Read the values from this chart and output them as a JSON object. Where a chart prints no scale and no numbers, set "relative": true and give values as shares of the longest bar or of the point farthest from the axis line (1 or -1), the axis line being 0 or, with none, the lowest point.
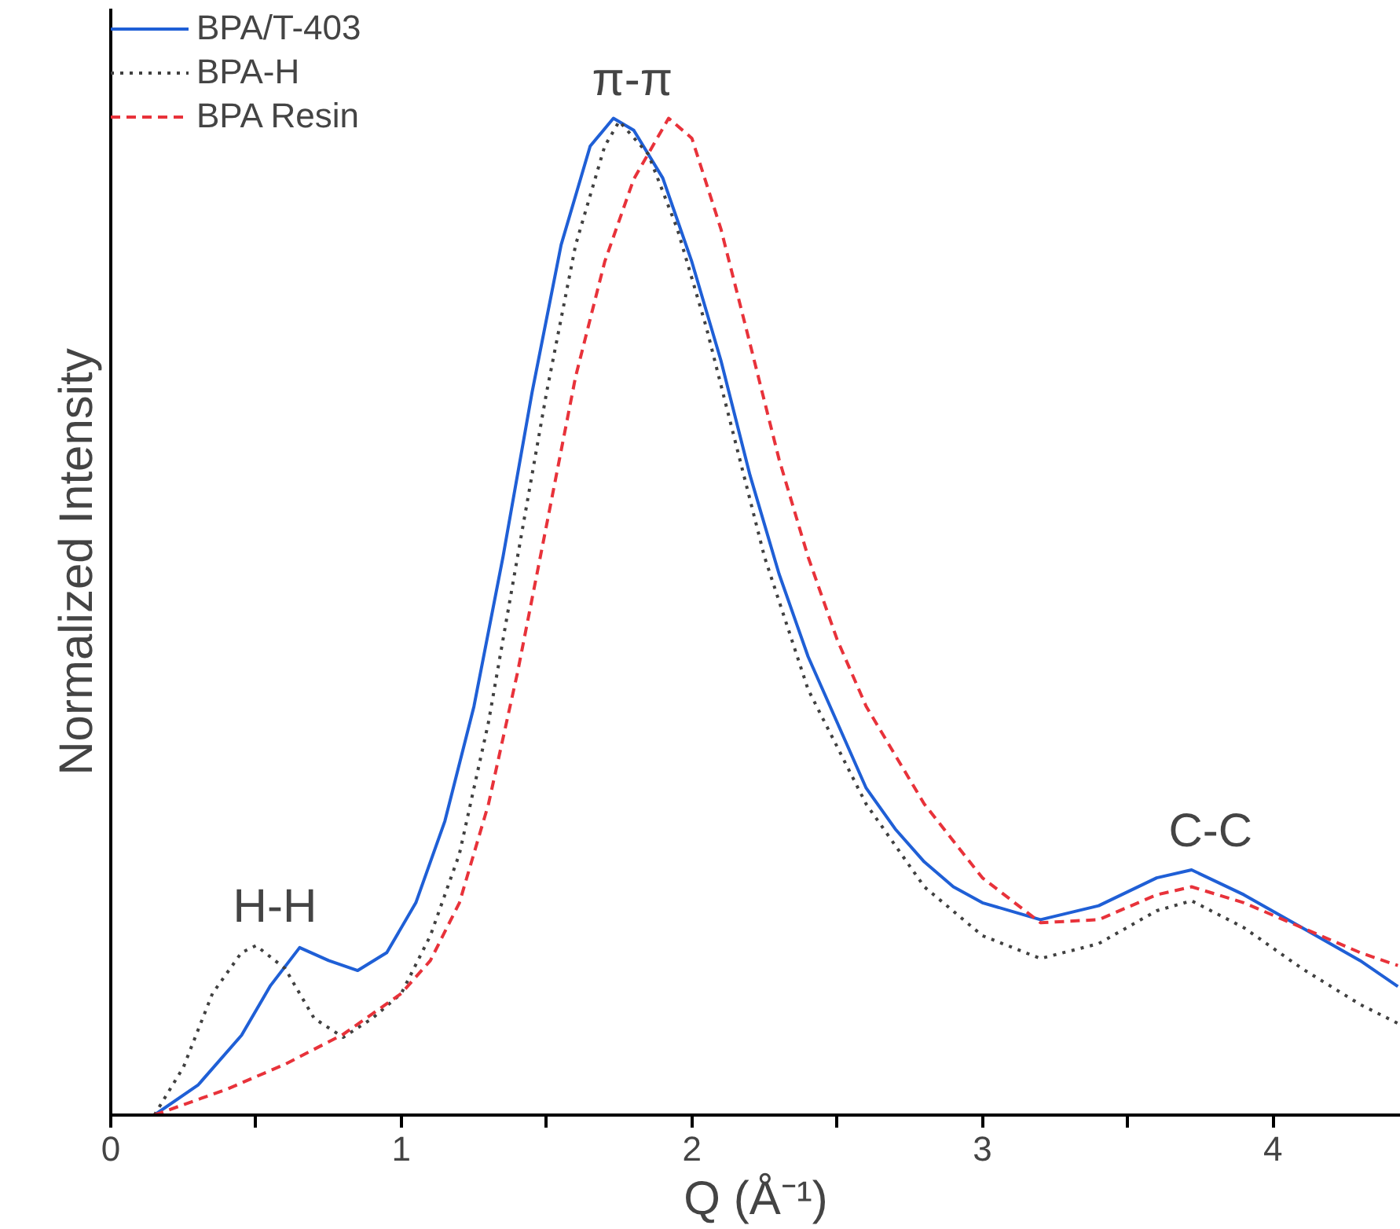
{
  "chart_data": {
    "type": "line",
    "relative": true,
    "xlabel": "Q (Å⁻¹)",
    "ylabel": "Normalized Intensity",
    "xlim": [
      0,
      4.44
    ],
    "xticks": [
      0,
      {
        "value": 0.5,
        "label": null
      },
      1,
      {
        "value": 1.5,
        "label": null
      },
      2,
      {
        "value": 2.5,
        "label": null
      },
      3,
      {
        "value": 3.5,
        "label": null
      },
      4
    ],
    "grid": false,
    "legend": "top left",
    "annotations": [
      {
        "text": "H-H",
        "x": 0.5,
        "y": 0.17
      },
      {
        "text": "π-π",
        "x": 1.73,
        "y": 1.0
      },
      {
        "text": "C-C",
        "x": 3.72,
        "y": 0.246
      }
    ],
    "series": [
      {
        "name": "BPA/T-403",
        "color": "#1f5fd6",
        "line_style": "solid",
        "x": [
          0.15,
          0.3,
          0.45,
          0.55,
          0.65,
          0.75,
          0.85,
          0.95,
          1.05,
          1.15,
          1.25,
          1.35,
          1.45,
          1.55,
          1.65,
          1.73,
          1.8,
          1.9,
          2.0,
          2.1,
          2.2,
          2.3,
          2.4,
          2.5,
          2.6,
          2.7,
          2.8,
          2.9,
          3.0,
          3.2,
          3.4,
          3.6,
          3.72,
          3.9,
          4.1,
          4.3,
          4.43
        ],
        "values": [
          0,
          0.03,
          0.08,
          0.13,
          0.168,
          0.155,
          0.145,
          0.163,
          0.213,
          0.295,
          0.41,
          0.56,
          0.725,
          0.873,
          0.972,
          1.0,
          0.988,
          0.94,
          0.856,
          0.757,
          0.642,
          0.543,
          0.46,
          0.394,
          0.328,
          0.287,
          0.254,
          0.229,
          0.213,
          0.196,
          0.21,
          0.238,
          0.246,
          0.221,
          0.188,
          0.155,
          0.129
        ]
      },
      {
        "name": "BPA-H",
        "color": "#404040",
        "line_style": "dotted",
        "x": [
          0.15,
          0.25,
          0.35,
          0.45,
          0.5,
          0.6,
          0.7,
          0.8,
          0.9,
          1.0,
          1.1,
          1.2,
          1.3,
          1.4,
          1.5,
          1.6,
          1.7,
          1.75,
          1.85,
          1.95,
          2.05,
          2.15,
          2.25,
          2.4,
          2.6,
          2.8,
          3.0,
          3.2,
          3.4,
          3.6,
          3.72,
          3.9,
          4.1,
          4.3,
          4.43
        ],
        "values": [
          0,
          0.048,
          0.122,
          0.163,
          0.17,
          0.147,
          0.097,
          0.078,
          0.097,
          0.122,
          0.18,
          0.262,
          0.394,
          0.56,
          0.725,
          0.873,
          0.972,
          0.997,
          0.964,
          0.889,
          0.79,
          0.675,
          0.56,
          0.427,
          0.312,
          0.229,
          0.18,
          0.157,
          0.172,
          0.205,
          0.215,
          0.188,
          0.147,
          0.111,
          0.092
        ]
      },
      {
        "name": "BPA Resin",
        "color": "#e8323a",
        "line_style": "dashed",
        "x": [
          0.15,
          0.4,
          0.6,
          0.8,
          1.0,
          1.1,
          1.2,
          1.3,
          1.4,
          1.5,
          1.6,
          1.7,
          1.8,
          1.92,
          2.0,
          2.1,
          2.2,
          2.3,
          2.4,
          2.5,
          2.6,
          2.8,
          3.0,
          3.2,
          3.4,
          3.6,
          3.72,
          3.9,
          4.1,
          4.3,
          4.43
        ],
        "values": [
          0,
          0.026,
          0.051,
          0.081,
          0.122,
          0.155,
          0.213,
          0.312,
          0.444,
          0.592,
          0.741,
          0.856,
          0.939,
          1.0,
          0.98,
          0.889,
          0.774,
          0.658,
          0.56,
          0.477,
          0.41,
          0.312,
          0.238,
          0.193,
          0.196,
          0.221,
          0.229,
          0.213,
          0.188,
          0.163,
          0.15
        ]
      }
    ]
  }
}
